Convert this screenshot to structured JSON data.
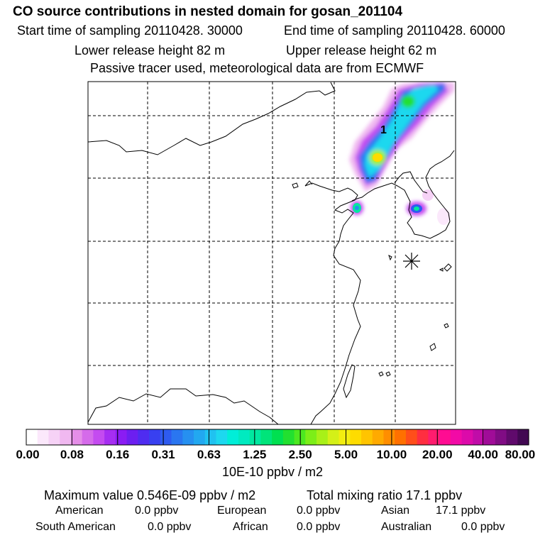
{
  "header": {
    "title": "CO  source contributions in nested domain for gosan_201104",
    "start_time": "Start time of sampling 20110428. 30000",
    "end_time": "End time of sampling 20110428. 60000",
    "lower_release": "Lower release height   82 m",
    "upper_release": "Upper release height   62 m",
    "tracer_note": "Passive tracer used, meteorological data are from ECMWF"
  },
  "chart_data": {
    "type": "heatmap",
    "title": "CO  source contributions in nested domain for gosan_201104",
    "colorbar": {
      "tick_labels": [
        "0.00",
        "0.08",
        "0.16",
        "0.31",
        "0.63",
        "1.25",
        "2.50",
        "5.00",
        "10.00",
        "20.00",
        "40.00",
        "80.00"
      ],
      "colors": [
        "#ffffff",
        "#fbe8fb",
        "#f6d2f6",
        "#f0b8f0",
        "#e58ee8",
        "#d56bea",
        "#c44bf0",
        "#a62ef2",
        "#8a1cf3",
        "#6c1ff0",
        "#4f2cf0",
        "#3840f0",
        "#2e5bf0",
        "#2a76f0",
        "#2690f0",
        "#22a8f0",
        "#20c2f0",
        "#1dd8ef",
        "#00eed8",
        "#00eac0",
        "#00e8a0",
        "#00e47a",
        "#00e050",
        "#22e030",
        "#4ce820",
        "#7cee18",
        "#a8f018",
        "#d4f018",
        "#f2ee10",
        "#fedc00",
        "#ffc400",
        "#ffaa00",
        "#ff8e00",
        "#ff7000",
        "#ff4e1a",
        "#ff2e40",
        "#ff1c6e",
        "#ff0c92",
        "#f20aa6",
        "#dc0aaa",
        "#c00ca8",
        "#a00c98",
        "#800c84",
        "#600a6c",
        "#420852"
      ],
      "unit": "10E-10 ppbv / m2"
    },
    "contour_label": "1",
    "summary": {
      "maximum": "Maximum value  0.546E-09 ppbv / m2",
      "total_mixing": "Total mixing ratio       17.1 ppbv"
    },
    "regions": [
      {
        "name": "American",
        "value": "0.0 ppbv"
      },
      {
        "name": "European",
        "value": "0.0 ppbv"
      },
      {
        "name": "Asian",
        "value": "17.1 ppbv"
      },
      {
        "name": "South American",
        "value": "0.0 ppbv"
      },
      {
        "name": "African",
        "value": "0.0 ppbv"
      },
      {
        "name": "Australian",
        "value": "0.0 ppbv"
      }
    ]
  }
}
